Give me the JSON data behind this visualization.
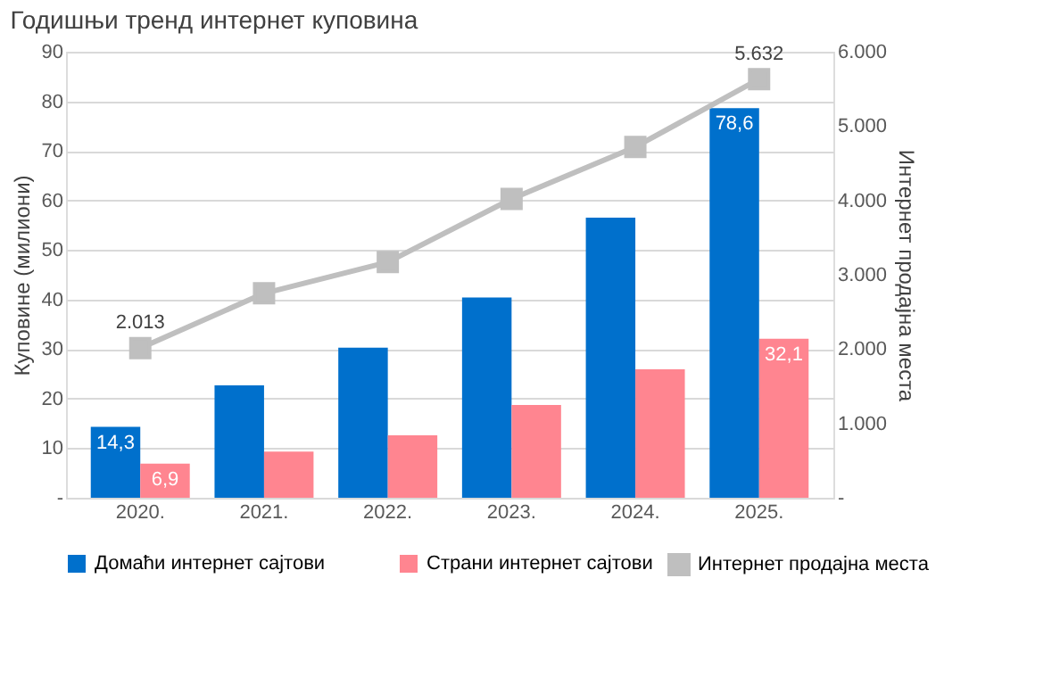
{
  "chart_data": {
    "type": "bar",
    "title": "Годишњи тренд интернет куповина",
    "ylabel": "Куповине (милиони)",
    "y2label": "Интернет продајна места",
    "categories": [
      "2020.",
      "2021.",
      "2022.",
      "2023.",
      "2024.",
      "2025."
    ],
    "series": [
      {
        "name": "Домаћи интернет сајтови",
        "color": "#0070cc",
        "values": [
          14.3,
          22.7,
          30.3,
          40.4,
          56.5,
          78.6
        ],
        "value_labels": [
          "14,3",
          null,
          null,
          null,
          null,
          "78,6"
        ]
      },
      {
        "name": "Страни интернет сајтови",
        "color": "#ff8590",
        "values": [
          6.9,
          9.3,
          12.6,
          18.7,
          25.9,
          32.1
        ],
        "value_labels": [
          "6,9",
          null,
          null,
          null,
          null,
          "32,1"
        ]
      },
      {
        "name": "Интернет продајна места",
        "type": "line",
        "axis": "y2",
        "color": "#bfbfbf",
        "marker": "square",
        "values": [
          2013,
          2750,
          3170,
          4020,
          4720,
          5632
        ],
        "value_labels": [
          "2.013",
          null,
          null,
          null,
          null,
          "5.632"
        ]
      }
    ],
    "ylim": [
      0,
      90
    ],
    "yticks": [
      {
        "value": 0,
        "label": "-"
      },
      10,
      20,
      30,
      40,
      50,
      60,
      70,
      80,
      90
    ],
    "y2lim": [
      0,
      6000
    ],
    "y2ticks": [
      {
        "value": 0,
        "label": "-"
      },
      {
        "value": 1000,
        "label": "1.000"
      },
      {
        "value": 2000,
        "label": "2.000"
      },
      {
        "value": 3000,
        "label": "3.000"
      },
      {
        "value": 4000,
        "label": "4.000"
      },
      {
        "value": 5000,
        "label": "5.000"
      },
      {
        "value": 6000,
        "label": "6.000"
      }
    ],
    "grid": "y",
    "legend": "bottom"
  }
}
